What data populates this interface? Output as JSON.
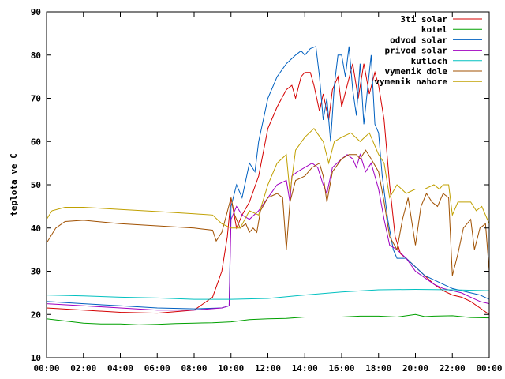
{
  "chart_data": {
    "type": "line",
    "title": "",
    "xlabel": "",
    "ylabel": "teplota ve C",
    "xlim": [
      0,
      24
    ],
    "ylim": [
      10,
      90
    ],
    "x_ticks": [
      {
        "value": 0,
        "label": "00:00"
      },
      {
        "value": 2,
        "label": "02:00"
      },
      {
        "value": 4,
        "label": "04:00"
      },
      {
        "value": 6,
        "label": "06:00"
      },
      {
        "value": 8,
        "label": "08:00"
      },
      {
        "value": 10,
        "label": "10:00"
      },
      {
        "value": 12,
        "label": "12:00"
      },
      {
        "value": 14,
        "label": "14:00"
      },
      {
        "value": 16,
        "label": "16:00"
      },
      {
        "value": 18,
        "label": "18:00"
      },
      {
        "value": 20,
        "label": "20:00"
      },
      {
        "value": 22,
        "label": "22:00"
      },
      {
        "value": 24,
        "label": "00:00"
      }
    ],
    "y_ticks": [
      10,
      20,
      30,
      40,
      50,
      60,
      70,
      80,
      90
    ],
    "grid": false,
    "legend": "top-right",
    "series": [
      {
        "name": "3ti solar",
        "color": "#d40000",
        "points": [
          [
            0,
            21.5
          ],
          [
            2,
            21
          ],
          [
            4,
            20.5
          ],
          [
            6,
            20.3
          ],
          [
            8,
            21
          ],
          [
            9,
            24
          ],
          [
            9.5,
            30
          ],
          [
            9.8,
            38
          ],
          [
            10,
            47
          ],
          [
            10.3,
            40
          ],
          [
            10.6,
            43
          ],
          [
            11,
            46
          ],
          [
            11.5,
            52
          ],
          [
            12,
            63
          ],
          [
            12.5,
            68
          ],
          [
            13,
            72
          ],
          [
            13.3,
            73
          ],
          [
            13.5,
            70
          ],
          [
            13.8,
            75
          ],
          [
            14,
            76
          ],
          [
            14.3,
            76
          ],
          [
            14.5,
            73
          ],
          [
            14.8,
            67
          ],
          [
            15,
            71
          ],
          [
            15.3,
            65
          ],
          [
            15.5,
            72
          ],
          [
            15.8,
            75
          ],
          [
            16,
            68
          ],
          [
            16.3,
            73
          ],
          [
            16.6,
            78
          ],
          [
            16.9,
            70
          ],
          [
            17.2,
            78
          ],
          [
            17.5,
            71
          ],
          [
            17.8,
            76
          ],
          [
            18,
            73
          ],
          [
            18.3,
            65
          ],
          [
            18.6,
            50
          ],
          [
            18.9,
            38
          ],
          [
            19.2,
            34
          ],
          [
            19.5,
            33
          ],
          [
            20,
            31
          ],
          [
            20.5,
            29
          ],
          [
            21,
            27
          ],
          [
            21.5,
            25.5
          ],
          [
            22,
            24.5
          ],
          [
            22.5,
            24
          ],
          [
            23,
            23
          ],
          [
            23.5,
            21.5
          ],
          [
            24,
            20
          ]
        ]
      },
      {
        "name": "kotel",
        "color": "#00a000",
        "points": [
          [
            0,
            19
          ],
          [
            1,
            18.5
          ],
          [
            2,
            18
          ],
          [
            3,
            17.8
          ],
          [
            4,
            17.8
          ],
          [
            5,
            17.6
          ],
          [
            6,
            17.7
          ],
          [
            7,
            17.9
          ],
          [
            8,
            18
          ],
          [
            9,
            18.1
          ],
          [
            10,
            18.3
          ],
          [
            11,
            18.8
          ],
          [
            12,
            19
          ],
          [
            13,
            19.1
          ],
          [
            14,
            19.4
          ],
          [
            15,
            19.4
          ],
          [
            16,
            19.4
          ],
          [
            17,
            19.6
          ],
          [
            18,
            19.6
          ],
          [
            19,
            19.4
          ],
          [
            20,
            20
          ],
          [
            20.5,
            19.5
          ],
          [
            21,
            19.6
          ],
          [
            22,
            19.7
          ],
          [
            23,
            19.3
          ],
          [
            24,
            19.2
          ]
        ]
      },
      {
        "name": "odvod solar",
        "color": "#0060c0",
        "points": [
          [
            0,
            23
          ],
          [
            2,
            22.5
          ],
          [
            4,
            22
          ],
          [
            6,
            21.5
          ],
          [
            8,
            21.3
          ],
          [
            9.5,
            21.5
          ],
          [
            9.9,
            22
          ],
          [
            10,
            45
          ],
          [
            10.3,
            50
          ],
          [
            10.6,
            47
          ],
          [
            11,
            55
          ],
          [
            11.3,
            53
          ],
          [
            11.5,
            60
          ],
          [
            12,
            70
          ],
          [
            12.5,
            75
          ],
          [
            13,
            78
          ],
          [
            13.5,
            80
          ],
          [
            13.8,
            81
          ],
          [
            14,
            80
          ],
          [
            14.3,
            81.5
          ],
          [
            14.6,
            82
          ],
          [
            14.8,
            75
          ],
          [
            15,
            65
          ],
          [
            15.2,
            70
          ],
          [
            15.4,
            60
          ],
          [
            15.6,
            73
          ],
          [
            15.8,
            80
          ],
          [
            16,
            80
          ],
          [
            16.2,
            75
          ],
          [
            16.4,
            82
          ],
          [
            16.6,
            72
          ],
          [
            16.8,
            66
          ],
          [
            17,
            78
          ],
          [
            17.2,
            64
          ],
          [
            17.4,
            72
          ],
          [
            17.6,
            80
          ],
          [
            17.8,
            64
          ],
          [
            18,
            62
          ],
          [
            18.2,
            52
          ],
          [
            18.5,
            42
          ],
          [
            18.8,
            35
          ],
          [
            19,
            33
          ],
          [
            19.5,
            33
          ],
          [
            20,
            31
          ],
          [
            20.5,
            29
          ],
          [
            21,
            28
          ],
          [
            21.5,
            27
          ],
          [
            22,
            26
          ],
          [
            22.5,
            25.5
          ],
          [
            23,
            25
          ],
          [
            23.5,
            24.5
          ],
          [
            24,
            23.5
          ]
        ]
      },
      {
        "name": "privod solar",
        "color": "#a000c0",
        "points": [
          [
            0,
            22.5
          ],
          [
            2,
            22
          ],
          [
            4,
            21.5
          ],
          [
            6,
            21
          ],
          [
            8,
            21
          ],
          [
            9.5,
            21.5
          ],
          [
            9.9,
            22
          ],
          [
            10,
            42
          ],
          [
            10.3,
            45
          ],
          [
            10.6,
            43
          ],
          [
            11,
            42
          ],
          [
            11.5,
            44
          ],
          [
            12,
            47
          ],
          [
            12.5,
            50
          ],
          [
            13,
            51
          ],
          [
            13.2,
            46
          ],
          [
            13.3,
            52
          ],
          [
            13.6,
            53
          ],
          [
            14,
            54
          ],
          [
            14.4,
            55
          ],
          [
            14.7,
            54
          ],
          [
            15,
            50
          ],
          [
            15.2,
            48
          ],
          [
            15.5,
            54
          ],
          [
            16,
            56
          ],
          [
            16.3,
            57
          ],
          [
            16.6,
            56
          ],
          [
            16.8,
            54
          ],
          [
            17,
            57
          ],
          [
            17.3,
            53
          ],
          [
            17.6,
            55
          ],
          [
            18,
            49
          ],
          [
            18.3,
            42
          ],
          [
            18.6,
            36
          ],
          [
            19,
            35
          ],
          [
            19.5,
            33
          ],
          [
            20,
            30
          ],
          [
            20.5,
            28.5
          ],
          [
            21,
            27
          ],
          [
            21.5,
            26
          ],
          [
            22,
            25.5
          ],
          [
            22.5,
            25
          ],
          [
            23,
            24
          ],
          [
            23.5,
            23
          ],
          [
            24,
            22.5
          ]
        ]
      },
      {
        "name": "kutloch",
        "color": "#00c0c0",
        "points": [
          [
            0,
            24.5
          ],
          [
            2,
            24.3
          ],
          [
            4,
            24
          ],
          [
            6,
            23.8
          ],
          [
            8,
            23.5
          ],
          [
            10,
            23.5
          ],
          [
            12,
            23.7
          ],
          [
            14,
            24.5
          ],
          [
            16,
            25.2
          ],
          [
            18,
            25.7
          ],
          [
            20,
            25.8
          ],
          [
            22,
            25.7
          ],
          [
            24,
            25.5
          ]
        ]
      },
      {
        "name": "vymenik dole",
        "color": "#a05000",
        "points": [
          [
            0,
            36.5
          ],
          [
            0.5,
            40
          ],
          [
            1,
            41.5
          ],
          [
            2,
            41.8
          ],
          [
            4,
            41
          ],
          [
            6,
            40.5
          ],
          [
            8,
            40
          ],
          [
            9,
            39.5
          ],
          [
            9.2,
            37
          ],
          [
            9.5,
            39
          ],
          [
            10,
            47
          ],
          [
            10.2,
            43
          ],
          [
            10.5,
            40
          ],
          [
            10.8,
            41
          ],
          [
            11,
            39
          ],
          [
            11.2,
            40
          ],
          [
            11.4,
            39
          ],
          [
            11.6,
            44
          ],
          [
            12,
            47
          ],
          [
            12.5,
            48
          ],
          [
            12.8,
            47
          ],
          [
            13,
            35
          ],
          [
            13.2,
            46
          ],
          [
            13.5,
            51
          ],
          [
            14,
            52
          ],
          [
            14.4,
            54
          ],
          [
            14.8,
            55
          ],
          [
            15,
            52
          ],
          [
            15.2,
            46
          ],
          [
            15.5,
            53
          ],
          [
            16,
            56
          ],
          [
            16.4,
            57
          ],
          [
            16.8,
            57
          ],
          [
            17,
            56
          ],
          [
            17.3,
            58
          ],
          [
            17.6,
            56
          ],
          [
            18,
            53
          ],
          [
            18.3,
            46
          ],
          [
            18.6,
            38
          ],
          [
            19,
            35
          ],
          [
            19.3,
            42
          ],
          [
            19.6,
            47
          ],
          [
            20,
            36
          ],
          [
            20.3,
            45
          ],
          [
            20.6,
            48
          ],
          [
            20.9,
            46
          ],
          [
            21.2,
            45
          ],
          [
            21.5,
            48
          ],
          [
            21.8,
            47
          ],
          [
            22,
            29
          ],
          [
            22.3,
            34
          ],
          [
            22.6,
            40
          ],
          [
            23,
            42
          ],
          [
            23.2,
            35
          ],
          [
            23.5,
            40
          ],
          [
            23.8,
            41
          ],
          [
            24,
            30
          ]
        ]
      },
      {
        "name": "vymenik nahore",
        "color": "#c0a000",
        "points": [
          [
            0,
            42
          ],
          [
            0.3,
            44
          ],
          [
            1,
            44.8
          ],
          [
            2,
            44.8
          ],
          [
            4,
            44.3
          ],
          [
            6,
            43.8
          ],
          [
            8,
            43.3
          ],
          [
            9,
            43
          ],
          [
            9.5,
            41
          ],
          [
            10,
            40
          ],
          [
            10.5,
            40
          ],
          [
            11,
            44
          ],
          [
            11.5,
            43
          ],
          [
            12,
            50
          ],
          [
            12.5,
            55
          ],
          [
            13,
            57
          ],
          [
            13.2,
            48
          ],
          [
            13.5,
            58
          ],
          [
            14,
            61
          ],
          [
            14.5,
            63
          ],
          [
            15,
            60
          ],
          [
            15.3,
            55
          ],
          [
            15.6,
            60
          ],
          [
            16,
            61
          ],
          [
            16.5,
            62
          ],
          [
            17,
            60
          ],
          [
            17.5,
            62
          ],
          [
            18,
            57
          ],
          [
            18.3,
            55
          ],
          [
            18.6,
            47
          ],
          [
            19,
            50
          ],
          [
            19.5,
            48
          ],
          [
            20,
            49
          ],
          [
            20.5,
            49
          ],
          [
            21,
            50
          ],
          [
            21.3,
            49
          ],
          [
            21.5,
            50
          ],
          [
            21.8,
            50
          ],
          [
            22,
            43
          ],
          [
            22.3,
            46
          ],
          [
            22.6,
            46
          ],
          [
            23,
            46
          ],
          [
            23.3,
            44
          ],
          [
            23.6,
            45
          ],
          [
            24,
            41
          ]
        ]
      }
    ]
  }
}
